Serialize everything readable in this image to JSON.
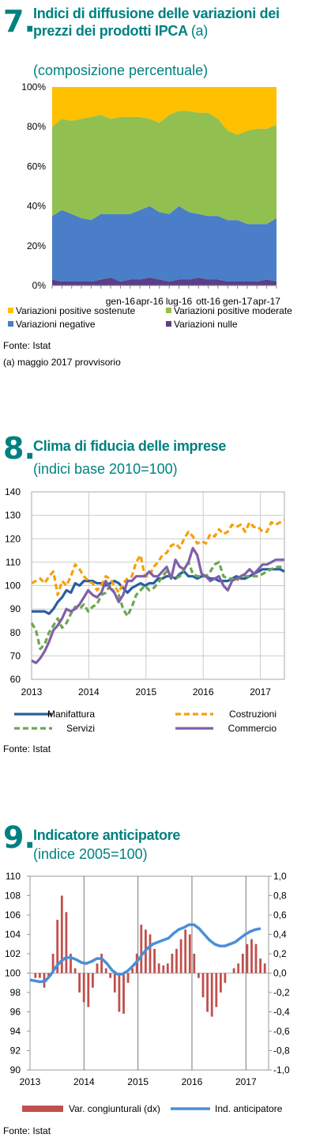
{
  "colors": {
    "teal": "#008080",
    "orange": "#f5a00c",
    "gold": "#ffc000",
    "green": "#92c050",
    "blue": "#4a7ec8",
    "purple": "#5b3e86",
    "darkblue": "#2a5f9e",
    "dashgreen": "#6aa84f",
    "violet": "#8060a8",
    "red": "#c0504d",
    "lightblue": "#4a8fd8"
  },
  "fig7": {
    "number": "7.",
    "title": "Indici di diffusione delle variazioni dei prezzi dei prodotti IPCA",
    "title_note": "(a)",
    "subtitle": "(composizione percentuale)",
    "source": "Fonte: Istat",
    "note": "(a) maggio 2017 provvisorio"
  },
  "fig8": {
    "number": "8.",
    "title": "Clima di fiducia delle imprese",
    "subtitle": "(indici base 2010=100)",
    "source": "Fonte: Istat"
  },
  "fig9": {
    "number": "9.",
    "title": "Indicatore anticipatore",
    "subtitle": "(indice 2005=100)",
    "source": "Fonte: Istat"
  },
  "chart_data": [
    {
      "id": "fig7",
      "type": "area",
      "stacked": true,
      "x": [
        "giu-15",
        "lug-15",
        "ago-15",
        "set-15",
        "ott-15",
        "nov-15",
        "dic-15",
        "gen-16",
        "feb-16",
        "mar-16",
        "apr-16",
        "mag-16",
        "giu-16",
        "lug-16",
        "ago-16",
        "set-16",
        "ott-16",
        "nov-16",
        "dic-16",
        "gen-17",
        "feb-17",
        "mar-17",
        "apr-17",
        "mag-17"
      ],
      "x_tick_labels": [
        "gen-16",
        "apr-16",
        "lug-16",
        "ott-16",
        "gen-17",
        "apr-17"
      ],
      "ylim": [
        0,
        100
      ],
      "y_ticks": [
        "0%",
        "20%",
        "40%",
        "60%",
        "80%",
        "100%"
      ],
      "legend_position": "bottom",
      "series": [
        {
          "name": "Variazioni nulle",
          "color": "#5b3e86",
          "values": [
            3,
            2,
            2,
            2,
            2,
            3,
            4,
            2,
            3,
            3,
            4,
            3,
            2,
            3,
            3,
            4,
            3,
            3,
            2,
            2,
            2,
            2,
            3,
            2
          ]
        },
        {
          "name": "Variazioni negative",
          "color": "#4a7ec8",
          "values": [
            32,
            36,
            34,
            32,
            31,
            33,
            32,
            34,
            33,
            35,
            36,
            34,
            34,
            37,
            34,
            32,
            32,
            32,
            31,
            31,
            29,
            29,
            28,
            32
          ]
        },
        {
          "name": "Variazioni positive moderate",
          "color": "#92c050",
          "values": [
            45,
            46,
            47,
            50,
            52,
            50,
            48,
            49,
            49,
            47,
            44,
            45,
            50,
            48,
            51,
            51,
            52,
            49,
            45,
            43,
            47,
            48,
            48,
            47
          ]
        },
        {
          "name": "Variazioni positive sostenute",
          "color": "#ffc000",
          "values": [
            20,
            16,
            17,
            16,
            15,
            14,
            16,
            15,
            15,
            15,
            16,
            18,
            14,
            12,
            12,
            13,
            13,
            16,
            22,
            24,
            22,
            21,
            21,
            19
          ]
        }
      ]
    },
    {
      "id": "fig8",
      "type": "line",
      "x_range": [
        2013.0,
        2017.42
      ],
      "x_tick_labels": [
        "2013",
        "2014",
        "2015",
        "2016",
        "2017"
      ],
      "ylim": [
        60,
        140
      ],
      "y_ticks": [
        60,
        70,
        80,
        90,
        100,
        110,
        120,
        130,
        140
      ],
      "grid": true,
      "legend_position": "bottom",
      "series": [
        {
          "name": "Manifattura",
          "style": "solid",
          "color": "#2a5f9e",
          "values": [
            89,
            89,
            89,
            89,
            88,
            90,
            93,
            95,
            98,
            97,
            101,
            100,
            102,
            102,
            102,
            101,
            101,
            100,
            101,
            102,
            101,
            99,
            97,
            99,
            100,
            101,
            100,
            101,
            101,
            103,
            103,
            104,
            104,
            103,
            105,
            106,
            104,
            104,
            103,
            104,
            104,
            103,
            103,
            102,
            102,
            102,
            103,
            104,
            103,
            103,
            104,
            105,
            106,
            107,
            107,
            107,
            107,
            107,
            106
          ]
        },
        {
          "name": "Costruzioni",
          "style": "dashed",
          "color": "#f5a00c",
          "values": [
            101,
            102,
            103,
            101,
            104,
            106,
            96,
            102,
            100,
            104,
            109,
            107,
            104,
            102,
            101,
            98,
            100,
            104,
            103,
            100,
            97,
            101,
            103,
            104,
            110,
            113,
            104,
            104,
            108,
            110,
            113,
            114,
            117,
            118,
            116,
            120,
            123,
            121,
            118,
            119,
            118,
            122,
            121,
            124,
            122,
            123,
            126,
            125,
            126,
            123,
            127,
            125,
            125,
            123,
            123,
            127,
            126,
            127,
            128
          ]
        },
        {
          "name": "Servizi",
          "style": "dashed",
          "color": "#6aa84f",
          "values": [
            84,
            81,
            73,
            75,
            80,
            83,
            86,
            82,
            84,
            88,
            91,
            90,
            92,
            89,
            91,
            92,
            96,
            97,
            100,
            97,
            96,
            90,
            87,
            91,
            96,
            98,
            100,
            98,
            99,
            101,
            104,
            106,
            104,
            103,
            104,
            107,
            110,
            105,
            104,
            104,
            104,
            106,
            109,
            110,
            104,
            103,
            103,
            102,
            104,
            104,
            104,
            104,
            104,
            105,
            106,
            107,
            108,
            108,
            108
          ]
        },
        {
          "name": "Commercio",
          "style": "solid",
          "color": "#8060a8",
          "values": [
            68,
            67,
            69,
            72,
            76,
            81,
            83,
            86,
            90,
            89,
            90,
            92,
            95,
            98,
            96,
            95,
            97,
            102,
            99,
            97,
            93,
            96,
            102,
            102,
            104,
            104,
            104,
            106,
            104,
            104,
            106,
            108,
            103,
            111,
            108,
            107,
            110,
            116,
            113,
            105,
            104,
            102,
            103,
            104,
            100,
            98,
            102,
            103,
            104,
            105,
            107,
            105,
            107,
            109,
            109,
            110,
            111,
            111,
            111
          ]
        }
      ]
    },
    {
      "id": "fig9",
      "type": "bar+line",
      "x_range": [
        2013.0,
        2017.42
      ],
      "x_tick_labels": [
        "2013",
        "2014",
        "2015",
        "2016",
        "2017"
      ],
      "y_left": {
        "lim": [
          90,
          110
        ],
        "ticks": [
          90,
          92,
          94,
          96,
          98,
          100,
          102,
          104,
          106,
          108,
          110
        ]
      },
      "y_right": {
        "lim": [
          -1.0,
          1.0
        ],
        "ticks": [
          "-1,0",
          "-0,8",
          "-0,6",
          "-0,4",
          "-0,2",
          "0,0",
          "0,2",
          "0,4",
          "0,6",
          "0,8",
          "1,0"
        ]
      },
      "legend_position": "bottom",
      "series": [
        {
          "name": "Var. congiunturali (dx)",
          "type": "bar",
          "axis": "right",
          "color": "#c0504d",
          "values": [
            -0.05,
            -0.05,
            -0.15,
            -0.05,
            0.2,
            0.55,
            0.8,
            0.63,
            0.2,
            0.05,
            -0.2,
            -0.3,
            -0.35,
            -0.15,
            0.1,
            0.2,
            0.05,
            -0.05,
            -0.2,
            -0.4,
            -0.42,
            -0.1,
            0.05,
            0.2,
            0.5,
            0.45,
            0.4,
            0.25,
            0.1,
            0.08,
            0.1,
            0.2,
            0.25,
            0.35,
            0.45,
            0.4,
            0.2,
            -0.05,
            -0.25,
            -0.4,
            -0.45,
            -0.35,
            -0.2,
            -0.1,
            0.0,
            0.05,
            0.1,
            0.2,
            0.3,
            0.35,
            0.3,
            0.15,
            0.1
          ]
        },
        {
          "name": "Ind. anticipatore",
          "type": "line",
          "axis": "left",
          "color": "#4a8fd8",
          "values": [
            99.3,
            99.2,
            99.1,
            99.2,
            99.8,
            100.6,
            101.2,
            101.6,
            101.6,
            101.4,
            101.1,
            101.0,
            101.2,
            101.5,
            101.5,
            101.0,
            100.3,
            99.9,
            99.9,
            100.2,
            100.7,
            101.3,
            102.0,
            102.6,
            103.0,
            103.2,
            103.4,
            103.6,
            104.1,
            104.5,
            104.7,
            105.0,
            105.0,
            104.6,
            104.0,
            103.4,
            103.0,
            102.8,
            102.8,
            103.0,
            103.2,
            103.6,
            104.0,
            104.3,
            104.5,
            104.6
          ]
        }
      ]
    }
  ]
}
